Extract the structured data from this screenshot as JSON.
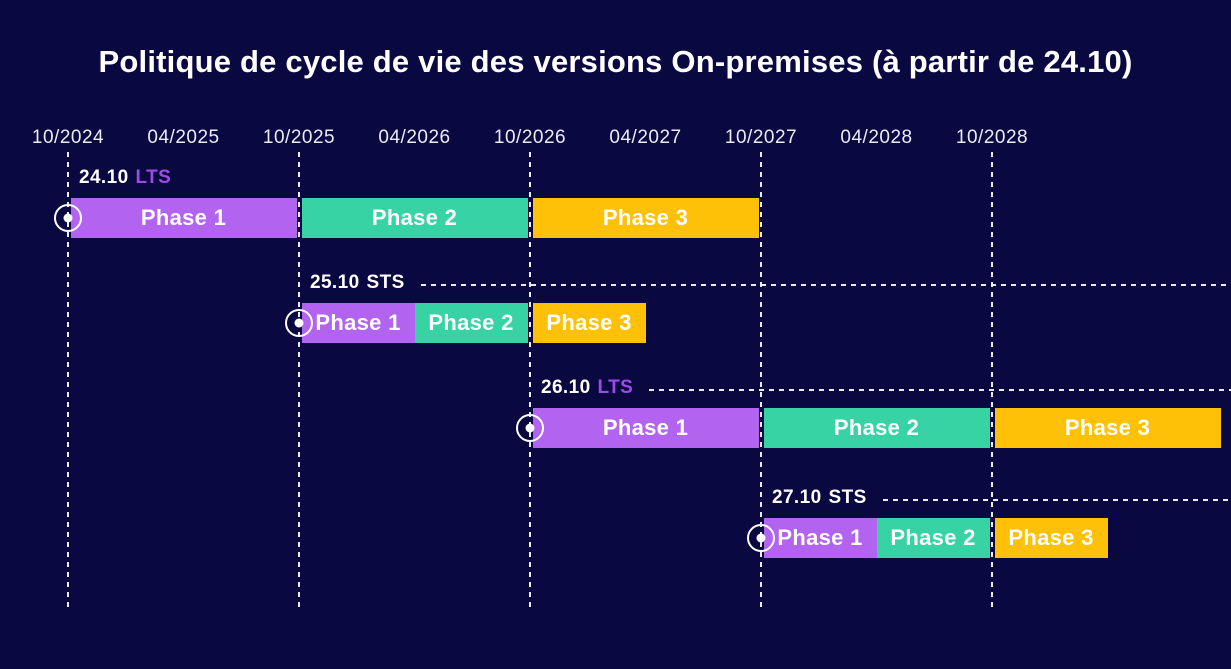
{
  "title": "Politique de cycle de vie des versions On-premises (à partir de 24.10)",
  "colors": {
    "background": "#0a0840",
    "text": "#ffffff",
    "gridline": "rgba(255,255,255,0.92)",
    "phase_1": "#b263f0",
    "phase_2": "#38d3a5",
    "phase_3": "#fec107",
    "lts_channel_text": "#9c4ce6",
    "sts_channel_text": "#ffffff"
  },
  "chart_data": {
    "type": "bar",
    "subtype": "gantt-timeline",
    "title": "Politique de cycle de vie des versions On-premises (à partir de 24.10)",
    "unit_meaning": "half-years elapsed since 10/2024",
    "x_ticks": [
      {
        "label": "10/2024",
        "unit": 0
      },
      {
        "label": "04/2025",
        "unit": 1
      },
      {
        "label": "10/2025",
        "unit": 2
      },
      {
        "label": "04/2026",
        "unit": 3
      },
      {
        "label": "10/2026",
        "unit": 4
      },
      {
        "label": "04/2027",
        "unit": 5
      },
      {
        "label": "10/2027",
        "unit": 6
      },
      {
        "label": "04/2028",
        "unit": 7
      },
      {
        "label": "10/2028",
        "unit": 8
      }
    ],
    "gridline_units": [
      0,
      2,
      4,
      6,
      8
    ],
    "series": [
      {
        "version": "24.10",
        "channel": "LTS",
        "start": "10/2024",
        "has_dashline": false,
        "phases": [
          {
            "name": "Phase 1",
            "start": "10/2024",
            "end": "10/2025",
            "start_unit": 0,
            "end_unit": 2,
            "color": "phase_1"
          },
          {
            "name": "Phase 2",
            "start": "10/2025",
            "end": "10/2026",
            "start_unit": 2,
            "end_unit": 4,
            "color": "phase_2"
          },
          {
            "name": "Phase 3",
            "start": "10/2026",
            "end": "10/2027",
            "start_unit": 4,
            "end_unit": 6,
            "color": "phase_3"
          }
        ]
      },
      {
        "version": "25.10",
        "channel": "STS",
        "start": "10/2025",
        "has_dashline": true,
        "phases": [
          {
            "name": "Phase 1",
            "start": "10/2025",
            "end": "04/2026",
            "start_unit": 2,
            "end_unit": 3,
            "color": "phase_1"
          },
          {
            "name": "Phase 2",
            "start": "04/2026",
            "end": "10/2026",
            "start_unit": 3,
            "end_unit": 4,
            "color": "phase_2"
          },
          {
            "name": "Phase 3",
            "start": "10/2026",
            "end": "04/2027",
            "start_unit": 4,
            "end_unit": 5,
            "color": "phase_3"
          }
        ]
      },
      {
        "version": "26.10",
        "channel": "LTS",
        "start": "10/2026",
        "has_dashline": true,
        "phases": [
          {
            "name": "Phase 1",
            "start": "10/2026",
            "end": "10/2027",
            "start_unit": 4,
            "end_unit": 6,
            "color": "phase_1"
          },
          {
            "name": "Phase 2",
            "start": "10/2027",
            "end": "10/2028",
            "start_unit": 6,
            "end_unit": 8,
            "color": "phase_2"
          },
          {
            "name": "Phase 3",
            "start": "10/2028",
            "end": "10/2029",
            "start_unit": 8,
            "end_unit": 10,
            "color": "phase_3"
          }
        ]
      },
      {
        "version": "27.10",
        "channel": "STS",
        "start": "10/2027",
        "has_dashline": true,
        "phases": [
          {
            "name": "Phase 1",
            "start": "10/2027",
            "end": "04/2028",
            "start_unit": 6,
            "end_unit": 7,
            "color": "phase_1"
          },
          {
            "name": "Phase 2",
            "start": "04/2028",
            "end": "10/2028",
            "start_unit": 7,
            "end_unit": 8,
            "color": "phase_2"
          },
          {
            "name": "Phase 3",
            "start": "10/2028",
            "end": "04/2029",
            "start_unit": 8,
            "end_unit": 9,
            "color": "phase_3"
          }
        ]
      }
    ]
  }
}
